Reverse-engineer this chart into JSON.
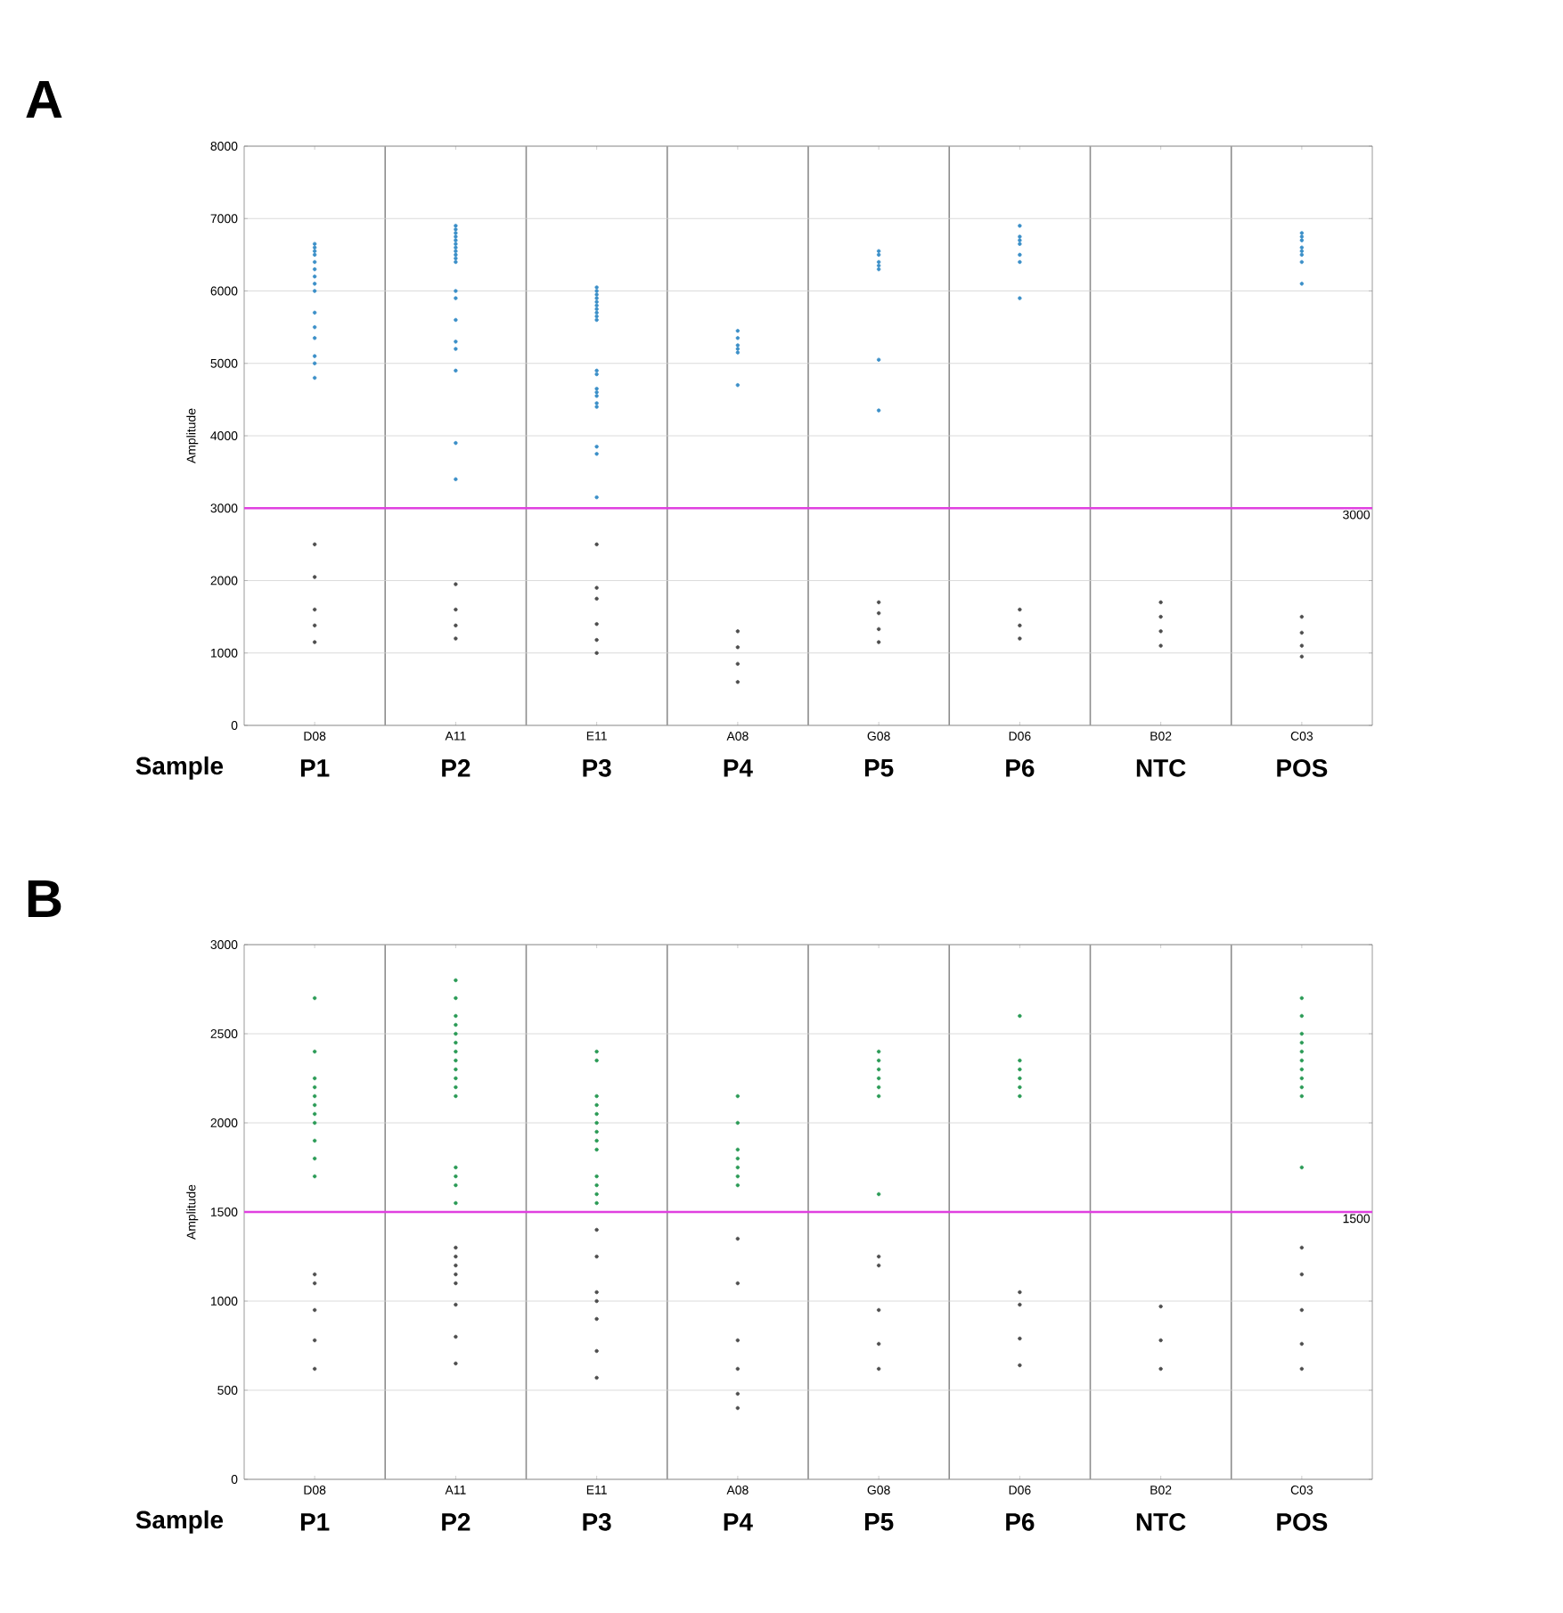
{
  "chart_data": [
    {
      "type": "scatter",
      "title": "A",
      "ylabel": "Amplitude",
      "marker": "circle",
      "grid": true,
      "ylim": [
        0,
        8000
      ],
      "categories": [
        "D08",
        "A11",
        "E11",
        "A08",
        "G08",
        "D06",
        "B02",
        "C03"
      ],
      "yticks": [
        0,
        1000,
        2000,
        3000,
        4000,
        5000,
        6000,
        7000,
        8000
      ],
      "ref_lines": [
        {
          "axis": "y",
          "value": 3000,
          "label": "3000",
          "color": "#e040e0"
        }
      ],
      "annotations": [
        "Sample",
        "P1",
        "P2",
        "P3",
        "P4",
        "P5",
        "P6",
        "NTC",
        "POS"
      ],
      "series": [
        {
          "color": "#4d4d4d",
          "x": [
            "D08",
            "D08",
            "D08",
            "D08",
            "D08",
            "A11",
            "A11",
            "A11",
            "A11",
            "E11",
            "E11",
            "E11",
            "E11",
            "E11",
            "E11",
            "A08",
            "A08",
            "A08",
            "A08",
            "G08",
            "G08",
            "G08",
            "G08",
            "D06",
            "D06",
            "D06",
            "B02",
            "B02",
            "B02",
            "B02",
            "C03",
            "C03",
            "C03",
            "C03"
          ],
          "values": [
            1150,
            1380,
            1600,
            2500,
            2050,
            1200,
            1380,
            1600,
            1950,
            1000,
            1180,
            1400,
            2500,
            1750,
            1900,
            850,
            1080,
            1300,
            600,
            1150,
            1330,
            1550,
            1700,
            1200,
            1380,
            1600,
            1100,
            1300,
            1500,
            1700,
            1100,
            1280,
            1500,
            950
          ]
        },
        {
          "color": "#3b8fc8",
          "x": [
            "D08",
            "D08",
            "D08",
            "D08",
            "D08",
            "D08",
            "D08",
            "D08",
            "D08",
            "D08",
            "D08",
            "D08",
            "D08",
            "D08",
            "D08",
            "A11",
            "A11",
            "A11",
            "A11",
            "A11",
            "A11",
            "A11",
            "A11",
            "A11",
            "A11",
            "A11",
            "A11",
            "A11",
            "A11",
            "A11",
            "A11",
            "A11",
            "A11",
            "A11",
            "E11",
            "E11",
            "E11",
            "E11",
            "E11",
            "E11",
            "E11",
            "E11",
            "E11",
            "E11",
            "E11",
            "E11",
            "E11",
            "E11",
            "E11",
            "E11",
            "E11",
            "E11",
            "E11",
            "E11",
            "A08",
            "A08",
            "A08",
            "A08",
            "A08",
            "A08",
            "G08",
            "G08",
            "G08",
            "G08",
            "G08",
            "G08",
            "G08",
            "D06",
            "D06",
            "D06",
            "D06",
            "D06",
            "D06",
            "D06",
            "C03",
            "C03",
            "C03",
            "C03",
            "C03",
            "C03",
            "C03",
            "C03"
          ],
          "values": [
            6300,
            5350,
            6500,
            6650,
            6400,
            6100,
            5700,
            6550,
            5100,
            6000,
            5500,
            4800,
            5000,
            6200,
            6600,
            6700,
            6500,
            6800,
            6600,
            6900,
            6650,
            6450,
            6750,
            6850,
            6550,
            6400,
            4900,
            3900,
            5600,
            5200,
            3400,
            5300,
            5900,
            6000,
            5800,
            5600,
            6000,
            5750,
            5900,
            5650,
            5850,
            5700,
            6050,
            5950,
            4400,
            3750,
            4900,
            4600,
            4550,
            4850,
            3150,
            3850,
            4450,
            4650,
            5450,
            5350,
            5150,
            5200,
            5250,
            4700,
            6400,
            6300,
            6550,
            4350,
            6500,
            6350,
            5050,
            6650,
            6700,
            6500,
            6750,
            6400,
            6900,
            5900,
            6800,
            6700,
            6400,
            6550,
            6600,
            6500,
            6750,
            6100
          ]
        }
      ]
    },
    {
      "type": "scatter",
      "title": "B",
      "ylabel": "Amplitude",
      "marker": "circle",
      "grid": true,
      "ylim": [
        0,
        3000
      ],
      "categories": [
        "D08",
        "A11",
        "E11",
        "A08",
        "G08",
        "D06",
        "B02",
        "C03"
      ],
      "yticks": [
        0,
        500,
        1000,
        1500,
        2000,
        2500,
        3000
      ],
      "ref_lines": [
        {
          "axis": "y",
          "value": 1500,
          "label": "1500",
          "color": "#e040e0"
        }
      ],
      "annotations": [
        "Sample",
        "P1",
        "P2",
        "P3",
        "P4",
        "P5",
        "P6",
        "NTC",
        "POS"
      ],
      "series": [
        {
          "color": "#4d4d4d",
          "x": [
            "D08",
            "D08",
            "D08",
            "D08",
            "D08",
            "A11",
            "A11",
            "A11",
            "A11",
            "A11",
            "A11",
            "A11",
            "A11",
            "E11",
            "E11",
            "E11",
            "E11",
            "E11",
            "E11",
            "E11",
            "A08",
            "A08",
            "A08",
            "A08",
            "A08",
            "A08",
            "G08",
            "G08",
            "G08",
            "G08",
            "G08",
            "D06",
            "D06",
            "D06",
            "D06",
            "B02",
            "B02",
            "B02",
            "C03",
            "C03",
            "C03",
            "C03",
            "C03"
          ],
          "values": [
            620,
            780,
            950,
            1150,
            1100,
            650,
            800,
            980,
            1250,
            1150,
            1300,
            1200,
            1100,
            570,
            720,
            900,
            1250,
            1000,
            1050,
            1400,
            480,
            620,
            780,
            1100,
            1350,
            400,
            620,
            760,
            950,
            1200,
            1250,
            640,
            790,
            980,
            1050,
            620,
            780,
            970,
            620,
            760,
            950,
            1300,
            1150
          ]
        },
        {
          "color": "#2a9a55",
          "x": [
            "D08",
            "D08",
            "D08",
            "D08",
            "D08",
            "D08",
            "D08",
            "D08",
            "D08",
            "D08",
            "D08",
            "A11",
            "A11",
            "A11",
            "A11",
            "A11",
            "A11",
            "A11",
            "A11",
            "A11",
            "A11",
            "A11",
            "A11",
            "A11",
            "A11",
            "A11",
            "A11",
            "E11",
            "E11",
            "E11",
            "E11",
            "E11",
            "E11",
            "E11",
            "E11",
            "E11",
            "E11",
            "E11",
            "E11",
            "E11",
            "A08",
            "A08",
            "A08",
            "A08",
            "A08",
            "A08",
            "A08",
            "G08",
            "G08",
            "G08",
            "G08",
            "G08",
            "G08",
            "G08",
            "D06",
            "D06",
            "D06",
            "D06",
            "D06",
            "D06",
            "C03",
            "C03",
            "C03",
            "C03",
            "C03",
            "C03",
            "C03",
            "C03",
            "C03",
            "C03",
            "C03"
          ],
          "values": [
            2250,
            2150,
            1800,
            2400,
            2000,
            2050,
            2200,
            1900,
            2100,
            2700,
            1700,
            2300,
            2450,
            2200,
            2350,
            2500,
            2250,
            2400,
            2150,
            2550,
            2600,
            2700,
            2800,
            1750,
            1650,
            1700,
            1550,
            2050,
            1950,
            2100,
            1900,
            2150,
            2000,
            1850,
            1650,
            2350,
            1550,
            1700,
            1600,
            2400,
            2000,
            1850,
            1750,
            2150,
            1800,
            1650,
            1700,
            2250,
            2350,
            2200,
            2150,
            2300,
            2400,
            1600,
            2300,
            2200,
            2350,
            2150,
            2250,
            2600,
            2200,
            2450,
            2300,
            2150,
            2350,
            2250,
            2500,
            2400,
            2600,
            2700,
            1750
          ]
        }
      ]
    }
  ]
}
